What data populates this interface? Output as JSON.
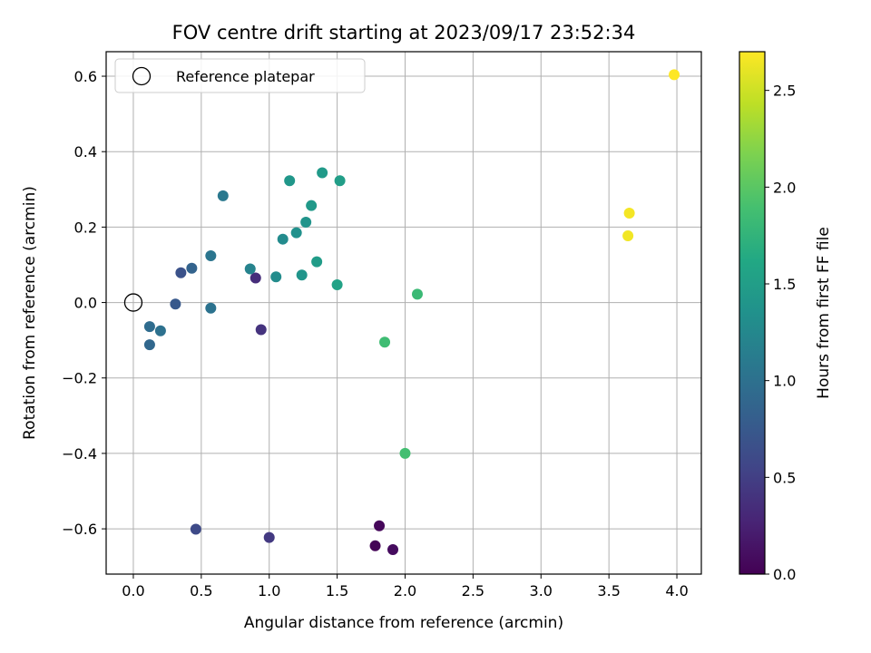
{
  "chart_data": {
    "type": "scatter",
    "title": "FOV centre drift starting at 2023/09/17 23:52:34",
    "xlabel": "Angular distance from reference (arcmin)",
    "ylabel": "Rotation from reference (arcmin)",
    "xlim": [
      -0.2,
      4.18
    ],
    "ylim": [
      -0.72,
      0.665
    ],
    "xticks": [
      0.0,
      0.5,
      1.0,
      1.5,
      2.0,
      2.5,
      3.0,
      3.5,
      4.0
    ],
    "xtick_labels": [
      "0.0",
      "0.5",
      "1.0",
      "1.5",
      "2.0",
      "2.5",
      "3.0",
      "3.5",
      "4.0"
    ],
    "yticks": [
      -0.6,
      -0.4,
      -0.2,
      0.0,
      0.2,
      0.4,
      0.6
    ],
    "ytick_labels": [
      "−0.6",
      "−0.4",
      "−0.2",
      "0.0",
      "0.2",
      "0.4",
      "0.6"
    ],
    "grid": true,
    "legend_position": "top-left",
    "legend_label": "Reference platepar",
    "reference_point": {
      "x": 0.0,
      "y": 0.0
    },
    "colormap": "viridis",
    "colorbar": {
      "label": "Hours from first FF file",
      "range": [
        0.0,
        2.7
      ],
      "ticks": [
        0.0,
        0.5,
        1.0,
        1.5,
        2.0,
        2.5
      ],
      "tick_labels": [
        "0.0",
        "0.5",
        "1.0",
        "1.5",
        "2.0",
        "2.5"
      ]
    },
    "points": [
      {
        "x": 1.78,
        "y": -0.645,
        "hours": 0.02
      },
      {
        "x": 1.81,
        "y": -0.592,
        "hours": 0.05
      },
      {
        "x": 1.91,
        "y": -0.655,
        "hours": 0.08
      },
      {
        "x": 0.9,
        "y": 0.065,
        "hours": 0.35
      },
      {
        "x": 0.94,
        "y": -0.072,
        "hours": 0.4
      },
      {
        "x": 1.0,
        "y": -0.623,
        "hours": 0.45
      },
      {
        "x": 0.46,
        "y": -0.601,
        "hours": 0.6
      },
      {
        "x": 0.35,
        "y": 0.079,
        "hours": 0.68
      },
      {
        "x": 0.31,
        "y": -0.004,
        "hours": 0.75
      },
      {
        "x": 0.43,
        "y": 0.091,
        "hours": 0.85
      },
      {
        "x": 0.12,
        "y": -0.112,
        "hours": 0.9
      },
      {
        "x": 0.12,
        "y": -0.064,
        "hours": 0.95
      },
      {
        "x": 0.2,
        "y": -0.075,
        "hours": 1.0
      },
      {
        "x": 0.57,
        "y": -0.015,
        "hours": 1.02
      },
      {
        "x": 0.57,
        "y": 0.124,
        "hours": 1.05
      },
      {
        "x": 0.66,
        "y": 0.283,
        "hours": 1.08
      },
      {
        "x": 0.86,
        "y": 0.089,
        "hours": 1.2
      },
      {
        "x": 1.1,
        "y": 0.168,
        "hours": 1.28
      },
      {
        "x": 1.05,
        "y": 0.068,
        "hours": 1.3
      },
      {
        "x": 1.2,
        "y": 0.185,
        "hours": 1.35
      },
      {
        "x": 1.27,
        "y": 0.213,
        "hours": 1.38
      },
      {
        "x": 1.24,
        "y": 0.073,
        "hours": 1.4
      },
      {
        "x": 1.15,
        "y": 0.323,
        "hours": 1.42
      },
      {
        "x": 1.31,
        "y": 0.257,
        "hours": 1.44
      },
      {
        "x": 1.39,
        "y": 0.344,
        "hours": 1.46
      },
      {
        "x": 1.35,
        "y": 0.108,
        "hours": 1.48
      },
      {
        "x": 1.52,
        "y": 0.323,
        "hours": 1.5
      },
      {
        "x": 1.5,
        "y": 0.047,
        "hours": 1.55
      },
      {
        "x": 2.09,
        "y": 0.022,
        "hours": 1.82
      },
      {
        "x": 1.85,
        "y": -0.105,
        "hours": 1.85
      },
      {
        "x": 2.0,
        "y": -0.4,
        "hours": 1.88
      },
      {
        "x": 3.64,
        "y": 0.177,
        "hours": 2.65
      },
      {
        "x": 3.65,
        "y": 0.237,
        "hours": 2.66
      },
      {
        "x": 3.98,
        "y": 0.604,
        "hours": 2.7
      }
    ]
  }
}
